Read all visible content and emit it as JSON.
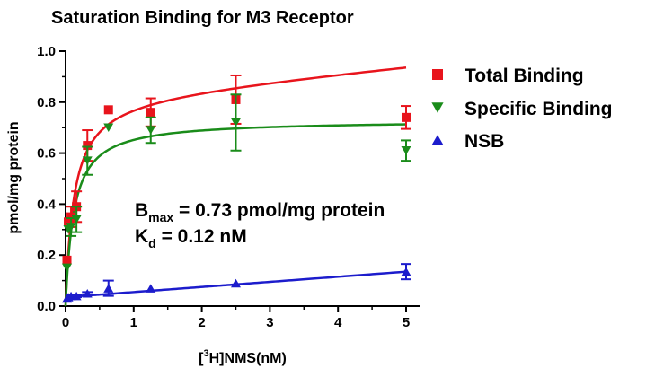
{
  "chart_data": {
    "type": "scatter",
    "title": "Saturation Binding for M3 Receptor",
    "xlabel": {
      "prefix": "[",
      "sup": "3",
      "suffix": "H]NMS(nM)"
    },
    "ylabel": "pmol/mg protein",
    "xlim": [
      0,
      5
    ],
    "ylim": [
      0,
      1.0
    ],
    "xticks": [
      0,
      1,
      2,
      3,
      4,
      5
    ],
    "yticks": [
      0.0,
      0.2,
      0.4,
      0.6,
      0.8,
      1.0
    ],
    "xtick_labels": [
      "0",
      "1",
      "2",
      "3",
      "4",
      "5"
    ],
    "ytick_labels": [
      "0.0",
      "0.2",
      "0.4",
      "0.6",
      "0.8",
      "1.0"
    ],
    "legend_position": "right",
    "grid": false,
    "series": [
      {
        "name": "Total Binding",
        "marker": "square",
        "color": "#e8141c",
        "x": [
          0.02,
          0.04,
          0.08,
          0.16,
          0.32,
          0.63,
          1.25,
          2.5,
          5.0
        ],
        "y": [
          0.18,
          0.33,
          0.35,
          0.39,
          0.63,
          0.77,
          0.76,
          0.81,
          0.74
        ],
        "err": [
          0.0,
          0.0,
          0.04,
          0.06,
          0.06,
          0.0,
          0.055,
          0.095,
          0.045
        ],
        "fit": {
          "kind": "one-site-plus-linear",
          "bmax": 0.83,
          "kd": 0.12,
          "ns": 0.025
        }
      },
      {
        "name": "Specific Binding",
        "marker": "triangle-down",
        "color": "#1a8c1a",
        "x": [
          0.02,
          0.04,
          0.08,
          0.16,
          0.32,
          0.63,
          1.25,
          2.5,
          5.0
        ],
        "y": [
          0.15,
          0.3,
          0.31,
          0.34,
          0.57,
          0.7,
          0.69,
          0.72,
          0.61
        ],
        "err": [
          0.0,
          0.0,
          0.035,
          0.05,
          0.055,
          0.0,
          0.05,
          0.11,
          0.04
        ],
        "fit": {
          "kind": "one-site",
          "bmax": 0.73,
          "kd": 0.12
        }
      },
      {
        "name": "NSB",
        "marker": "triangle-up",
        "color": "#1c1ccc",
        "x": [
          0.02,
          0.04,
          0.08,
          0.16,
          0.32,
          0.63,
          1.25,
          2.5,
          5.0
        ],
        "y": [
          0.03,
          0.035,
          0.04,
          0.04,
          0.05,
          0.07,
          0.07,
          0.09,
          0.135
        ],
        "err": [
          0.0,
          0.0,
          0.005,
          0.005,
          0.005,
          0.03,
          0.0,
          0.0,
          0.03
        ],
        "fit": {
          "kind": "linear",
          "slope": 0.02,
          "intercept": 0.035
        }
      }
    ],
    "annotations": [
      {
        "main": "B",
        "sub": "max",
        "rest": " = 0.73 pmol/mg protein"
      },
      {
        "main": "K",
        "sub": "d",
        "rest": " = 0.12 nM"
      }
    ]
  }
}
